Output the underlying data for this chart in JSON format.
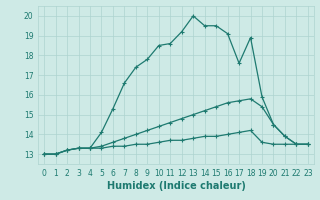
{
  "xlabel": "Humidex (Indice chaleur)",
  "background_color": "#ceeae6",
  "grid_color": "#aed4d0",
  "line_color": "#1e7a70",
  "xlim": [
    -0.5,
    23.5
  ],
  "ylim": [
    12.5,
    20.5
  ],
  "xticks": [
    0,
    1,
    2,
    3,
    4,
    5,
    6,
    7,
    8,
    9,
    10,
    11,
    12,
    13,
    14,
    15,
    16,
    17,
    18,
    19,
    20,
    21,
    22,
    23
  ],
  "yticks": [
    13,
    14,
    15,
    16,
    17,
    18,
    19,
    20
  ],
  "series": [
    [
      13.0,
      13.0,
      13.2,
      13.3,
      13.3,
      14.1,
      15.3,
      16.6,
      17.4,
      17.8,
      18.5,
      18.6,
      19.2,
      20.0,
      19.5,
      19.5,
      19.1,
      17.6,
      18.9,
      15.9,
      14.5,
      13.9,
      13.5,
      13.5
    ],
    [
      13.0,
      13.0,
      13.2,
      13.3,
      13.3,
      13.4,
      13.6,
      13.8,
      14.0,
      14.2,
      14.4,
      14.6,
      14.8,
      15.0,
      15.2,
      15.4,
      15.6,
      15.7,
      15.8,
      15.4,
      14.5,
      13.9,
      13.5,
      13.5
    ],
    [
      13.0,
      13.0,
      13.2,
      13.3,
      13.3,
      13.3,
      13.4,
      13.4,
      13.5,
      13.5,
      13.6,
      13.7,
      13.7,
      13.8,
      13.9,
      13.9,
      14.0,
      14.1,
      14.2,
      13.6,
      13.5,
      13.5,
      13.5,
      13.5
    ]
  ],
  "tick_fontsize": 5.5,
  "label_fontsize": 7
}
